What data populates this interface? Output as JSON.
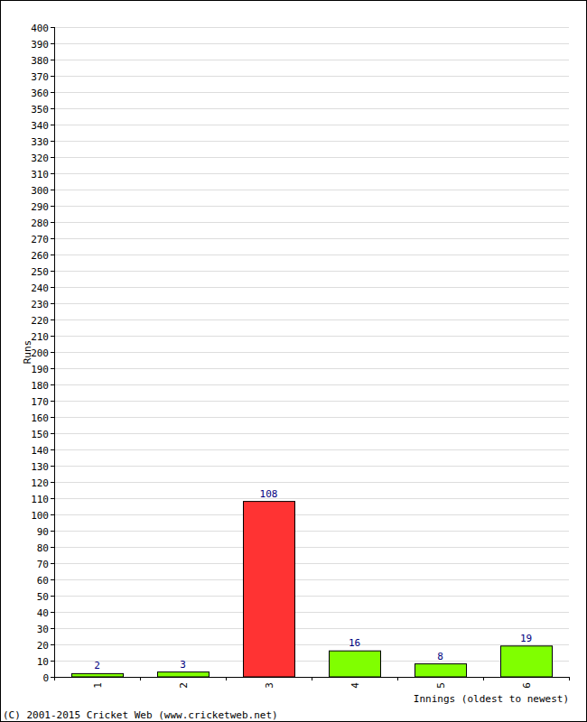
{
  "chart_data": {
    "type": "bar",
    "x_label": "Innings (oldest to newest)",
    "y_label": "Runs",
    "annotations": [
      "(C) 2001-2015 Cricket Web (www.cricketweb.net)"
    ],
    "categories": [
      "1",
      "2",
      "3",
      "4",
      "5",
      "6"
    ],
    "values": [
      2,
      3,
      108,
      16,
      8,
      19
    ],
    "colors": [
      "#80ff00",
      "#80ff00",
      "#ff3333",
      "#80ff00",
      "#80ff00",
      "#80ff00"
    ],
    "ylim": [
      0,
      400
    ],
    "yticks": [
      0,
      10,
      20,
      30,
      40,
      50,
      60,
      70,
      80,
      90,
      100,
      110,
      120,
      130,
      140,
      150,
      160,
      170,
      180,
      190,
      200,
      210,
      220,
      230,
      240,
      250,
      260,
      270,
      280,
      290,
      300,
      310,
      320,
      330,
      340,
      350,
      360,
      370,
      380,
      390,
      400
    ],
    "grid": true,
    "data_labels": true
  }
}
